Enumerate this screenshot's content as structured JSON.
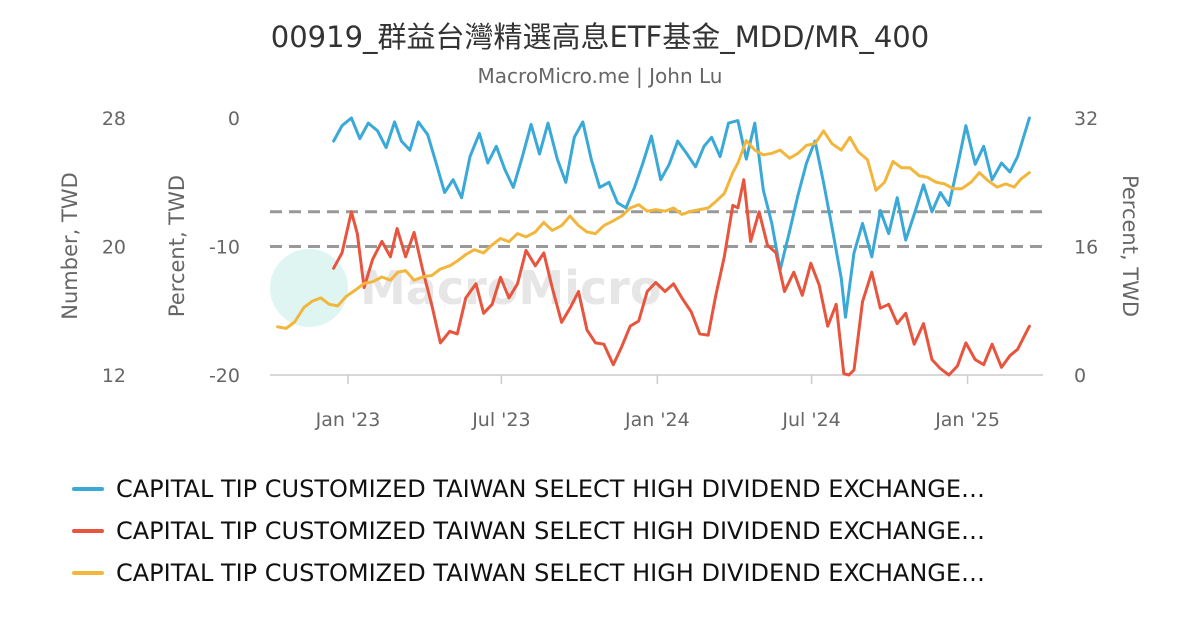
{
  "header": {
    "title": "00919_群益台灣精選高息ETF基金_MDD/MR_400",
    "subtitle": "MacroMicro.me | John Lu"
  },
  "watermark": {
    "text": "MacroMicro"
  },
  "chart_data": {
    "type": "line",
    "x_ticks": [
      "Jan '23",
      "Jul '23",
      "Jan '24",
      "Jul '24",
      "Jan '25"
    ],
    "x_range": [
      "2022-10-01",
      "2025-03-31"
    ],
    "axes": {
      "left_outer": {
        "title": "Number, TWD",
        "range": [
          12,
          28
        ],
        "ticks": [
          "28",
          "20",
          "12"
        ]
      },
      "left_inner": {
        "title": "Percent, TWD",
        "range": [
          -20,
          0
        ],
        "ticks": [
          "0",
          "-10",
          "-20"
        ]
      },
      "right": {
        "title": "Percent, TWD",
        "range": [
          0,
          32
        ],
        "ticks": [
          "32",
          "16",
          "0"
        ]
      }
    },
    "reference_lines": [
      {
        "axis": "left_inner",
        "value": -7.3,
        "style": "dashed"
      },
      {
        "axis": "left_inner",
        "value": -10,
        "style": "dashed"
      }
    ],
    "grid": false,
    "legend_position": "bottom",
    "series": [
      {
        "name": "CAPITAL TIP CUSTOMIZED TAIWAN SELECT HIGH DIVIDEND EXCHANGE…",
        "color": "#3aa9d8",
        "axis": "left_inner",
        "points": [
          [
            "2022-12-15",
            -1.8
          ],
          [
            "2022-12-25",
            -0.6
          ],
          [
            "2023-01-05",
            0
          ],
          [
            "2023-01-15",
            -1.6
          ],
          [
            "2023-01-25",
            -0.4
          ],
          [
            "2023-02-05",
            -1.0
          ],
          [
            "2023-02-15",
            -2.3
          ],
          [
            "2023-02-25",
            -0.3
          ],
          [
            "2023-03-05",
            -1.8
          ],
          [
            "2023-03-15",
            -2.5
          ],
          [
            "2023-03-25",
            -0.3
          ],
          [
            "2023-04-05",
            -1.3
          ],
          [
            "2023-04-15",
            -3.5
          ],
          [
            "2023-04-25",
            -5.8
          ],
          [
            "2023-05-05",
            -4.8
          ],
          [
            "2023-05-15",
            -6.2
          ],
          [
            "2023-05-25",
            -3.0
          ],
          [
            "2023-06-05",
            -1.2
          ],
          [
            "2023-06-15",
            -3.5
          ],
          [
            "2023-06-25",
            -2.2
          ],
          [
            "2023-07-05",
            -4.0
          ],
          [
            "2023-07-15",
            -5.4
          ],
          [
            "2023-07-25",
            -3.2
          ],
          [
            "2023-08-05",
            -0.5
          ],
          [
            "2023-08-15",
            -2.8
          ],
          [
            "2023-08-25",
            -0.4
          ],
          [
            "2023-09-05",
            -3.2
          ],
          [
            "2023-09-15",
            -5.0
          ],
          [
            "2023-09-25",
            -1.5
          ],
          [
            "2023-10-05",
            -0.3
          ],
          [
            "2023-10-15",
            -3.2
          ],
          [
            "2023-10-25",
            -5.4
          ],
          [
            "2023-11-05",
            -5.0
          ],
          [
            "2023-11-15",
            -6.6
          ],
          [
            "2023-11-25",
            -7.0
          ],
          [
            "2023-12-05",
            -5.4
          ],
          [
            "2023-12-15",
            -3.5
          ],
          [
            "2023-12-25",
            -1.4
          ],
          [
            "2024-01-05",
            -4.8
          ],
          [
            "2024-01-15",
            -3.6
          ],
          [
            "2024-01-25",
            -1.8
          ],
          [
            "2024-02-05",
            -2.8
          ],
          [
            "2024-02-15",
            -3.8
          ],
          [
            "2024-02-25",
            -2.2
          ],
          [
            "2024-03-05",
            -1.5
          ],
          [
            "2024-03-15",
            -3.0
          ],
          [
            "2024-03-25",
            -0.4
          ],
          [
            "2024-04-05",
            -0.2
          ],
          [
            "2024-04-15",
            -3.2
          ],
          [
            "2024-04-25",
            -0.4
          ],
          [
            "2024-05-05",
            -5.6
          ],
          [
            "2024-05-15",
            -8.2
          ],
          [
            "2024-05-25",
            -11.8
          ],
          [
            "2024-06-05",
            -8.8
          ],
          [
            "2024-06-15",
            -6.0
          ],
          [
            "2024-06-25",
            -3.5
          ],
          [
            "2024-07-05",
            -1.8
          ],
          [
            "2024-07-15",
            -5.0
          ],
          [
            "2024-07-25",
            -8.5
          ],
          [
            "2024-08-05",
            -12.5
          ],
          [
            "2024-08-10",
            -15.5
          ],
          [
            "2024-08-20",
            -10.5
          ],
          [
            "2024-08-30",
            -8.2
          ],
          [
            "2024-09-10",
            -10.8
          ],
          [
            "2024-09-20",
            -7.2
          ],
          [
            "2024-09-30",
            -9.0
          ],
          [
            "2024-10-10",
            -6.2
          ],
          [
            "2024-10-20",
            -9.5
          ],
          [
            "2024-10-30",
            -7.5
          ],
          [
            "2024-11-10",
            -5.2
          ],
          [
            "2024-11-20",
            -7.3
          ],
          [
            "2024-11-30",
            -5.8
          ],
          [
            "2024-12-10",
            -6.8
          ],
          [
            "2024-12-20",
            -3.8
          ],
          [
            "2024-12-30",
            -0.6
          ],
          [
            "2025-01-10",
            -3.6
          ],
          [
            "2025-01-20",
            -2.2
          ],
          [
            "2025-01-30",
            -4.8
          ],
          [
            "2025-02-10",
            -3.5
          ],
          [
            "2025-02-20",
            -4.2
          ],
          [
            "2025-03-01",
            -3.0
          ],
          [
            "2025-03-08",
            -1.5
          ],
          [
            "2025-03-15",
            0
          ]
        ]
      },
      {
        "name": "CAPITAL TIP CUSTOMIZED TAIWAN SELECT HIGH DIVIDEND EXCHANGE…",
        "color": "#e8553e",
        "axis": "left_inner",
        "points": [
          [
            "2022-12-15",
            -11.7
          ],
          [
            "2022-12-25",
            -10.5
          ],
          [
            "2023-01-05",
            -7.3
          ],
          [
            "2023-01-12",
            -9.0
          ],
          [
            "2023-01-20",
            -13.2
          ],
          [
            "2023-01-30",
            -11.0
          ],
          [
            "2023-02-10",
            -9.6
          ],
          [
            "2023-02-20",
            -10.8
          ],
          [
            "2023-02-28",
            -8.6
          ],
          [
            "2023-03-10",
            -10.8
          ],
          [
            "2023-03-20",
            -8.9
          ],
          [
            "2023-03-30",
            -11.8
          ],
          [
            "2023-04-10",
            -14.6
          ],
          [
            "2023-04-20",
            -17.5
          ],
          [
            "2023-05-01",
            -16.6
          ],
          [
            "2023-05-10",
            -16.8
          ],
          [
            "2023-05-20",
            -14.0
          ],
          [
            "2023-06-01",
            -12.9
          ],
          [
            "2023-06-10",
            -15.2
          ],
          [
            "2023-06-20",
            -14.5
          ],
          [
            "2023-06-30",
            -12.4
          ],
          [
            "2023-07-10",
            -14.0
          ],
          [
            "2023-07-20",
            -12.9
          ],
          [
            "2023-07-30",
            -10.3
          ],
          [
            "2023-08-10",
            -11.5
          ],
          [
            "2023-08-20",
            -10.5
          ],
          [
            "2023-08-30",
            -13.2
          ],
          [
            "2023-09-10",
            -15.9
          ],
          [
            "2023-09-20",
            -14.8
          ],
          [
            "2023-09-30",
            -13.5
          ],
          [
            "2023-10-10",
            -16.5
          ],
          [
            "2023-10-20",
            -17.5
          ],
          [
            "2023-10-30",
            -17.6
          ],
          [
            "2023-11-10",
            -19.2
          ],
          [
            "2023-11-20",
            -17.8
          ],
          [
            "2023-11-30",
            -16.2
          ],
          [
            "2023-12-10",
            -15.8
          ],
          [
            "2023-12-20",
            -13.5
          ],
          [
            "2023-12-30",
            -12.8
          ],
          [
            "2024-01-10",
            -13.5
          ],
          [
            "2024-01-20",
            -12.9
          ],
          [
            "2024-01-30",
            -14.0
          ],
          [
            "2024-02-10",
            -15.1
          ],
          [
            "2024-02-20",
            -16.8
          ],
          [
            "2024-03-01",
            -16.9
          ],
          [
            "2024-03-10",
            -13.8
          ],
          [
            "2024-03-20",
            -10.8
          ],
          [
            "2024-03-30",
            -6.8
          ],
          [
            "2024-04-05",
            -7.0
          ],
          [
            "2024-04-12",
            -4.8
          ],
          [
            "2024-04-20",
            -9.6
          ],
          [
            "2024-04-30",
            -7.3
          ],
          [
            "2024-05-10",
            -9.9
          ],
          [
            "2024-05-20",
            -10.5
          ],
          [
            "2024-05-30",
            -13.5
          ],
          [
            "2024-06-10",
            -12.0
          ],
          [
            "2024-06-20",
            -13.8
          ],
          [
            "2024-06-30",
            -11.3
          ],
          [
            "2024-07-10",
            -13.0
          ],
          [
            "2024-07-20",
            -16.2
          ],
          [
            "2024-07-30",
            -14.5
          ],
          [
            "2024-08-08",
            -19.9
          ],
          [
            "2024-08-14",
            -20.0
          ],
          [
            "2024-08-20",
            -19.6
          ],
          [
            "2024-08-30",
            -14.3
          ],
          [
            "2024-09-10",
            -12.0
          ],
          [
            "2024-09-20",
            -14.8
          ],
          [
            "2024-09-30",
            -14.5
          ],
          [
            "2024-10-10",
            -16.0
          ],
          [
            "2024-10-20",
            -15.2
          ],
          [
            "2024-10-30",
            -17.6
          ],
          [
            "2024-11-10",
            -16.0
          ],
          [
            "2024-11-20",
            -18.8
          ],
          [
            "2024-11-30",
            -19.5
          ],
          [
            "2024-12-10",
            -20.0
          ],
          [
            "2024-12-20",
            -19.3
          ],
          [
            "2024-12-30",
            -17.5
          ],
          [
            "2025-01-10",
            -18.8
          ],
          [
            "2025-01-20",
            -19.2
          ],
          [
            "2025-01-30",
            -17.6
          ],
          [
            "2025-02-10",
            -19.4
          ],
          [
            "2025-02-20",
            -18.5
          ],
          [
            "2025-03-01",
            -18.0
          ],
          [
            "2025-03-08",
            -17.1
          ],
          [
            "2025-03-15",
            -16.2
          ]
        ]
      },
      {
        "name": "CAPITAL TIP CUSTOMIZED TAIWAN SELECT HIGH DIVIDEND EXCHANGE…",
        "color": "#f2b63d",
        "axis": "left_outer",
        "points": [
          [
            "2022-10-10",
            15.0
          ],
          [
            "2022-10-20",
            14.9
          ],
          [
            "2022-10-30",
            15.3
          ],
          [
            "2022-11-10",
            16.2
          ],
          [
            "2022-11-20",
            16.6
          ],
          [
            "2022-11-30",
            16.8
          ],
          [
            "2022-12-10",
            16.4
          ],
          [
            "2022-12-20",
            16.3
          ],
          [
            "2022-12-30",
            16.9
          ],
          [
            "2023-01-10",
            17.3
          ],
          [
            "2023-01-20",
            17.7
          ],
          [
            "2023-01-30",
            17.8
          ],
          [
            "2023-02-10",
            18.1
          ],
          [
            "2023-02-20",
            17.9
          ],
          [
            "2023-03-01",
            18.4
          ],
          [
            "2023-03-10",
            18.5
          ],
          [
            "2023-03-20",
            17.9
          ],
          [
            "2023-03-30",
            18.1
          ],
          [
            "2023-04-10",
            18.2
          ],
          [
            "2023-04-20",
            18.6
          ],
          [
            "2023-05-01",
            18.8
          ],
          [
            "2023-05-10",
            19.1
          ],
          [
            "2023-05-20",
            19.5
          ],
          [
            "2023-05-30",
            19.8
          ],
          [
            "2023-06-10",
            19.6
          ],
          [
            "2023-06-20",
            20.1
          ],
          [
            "2023-06-30",
            20.5
          ],
          [
            "2023-07-10",
            20.3
          ],
          [
            "2023-07-20",
            20.8
          ],
          [
            "2023-07-30",
            20.6
          ],
          [
            "2023-08-10",
            20.9
          ],
          [
            "2023-08-20",
            21.5
          ],
          [
            "2023-08-30",
            21.0
          ],
          [
            "2023-09-10",
            21.3
          ],
          [
            "2023-09-20",
            21.9
          ],
          [
            "2023-09-30",
            21.3
          ],
          [
            "2023-10-10",
            20.9
          ],
          [
            "2023-10-20",
            20.8
          ],
          [
            "2023-10-30",
            21.3
          ],
          [
            "2023-11-10",
            21.6
          ],
          [
            "2023-11-20",
            21.9
          ],
          [
            "2023-11-30",
            22.4
          ],
          [
            "2023-12-10",
            22.6
          ],
          [
            "2023-12-20",
            22.2
          ],
          [
            "2023-12-30",
            22.3
          ],
          [
            "2024-01-10",
            22.2
          ],
          [
            "2024-01-20",
            22.4
          ],
          [
            "2024-01-30",
            22.0
          ],
          [
            "2024-02-10",
            22.2
          ],
          [
            "2024-02-20",
            22.3
          ],
          [
            "2024-03-01",
            22.4
          ],
          [
            "2024-03-10",
            22.8
          ],
          [
            "2024-03-20",
            23.3
          ],
          [
            "2024-03-30",
            24.6
          ],
          [
            "2024-04-05",
            25.2
          ],
          [
            "2024-04-15",
            26.6
          ],
          [
            "2024-04-25",
            26.0
          ],
          [
            "2024-05-05",
            25.7
          ],
          [
            "2024-05-15",
            25.8
          ],
          [
            "2024-05-25",
            26.0
          ],
          [
            "2024-06-05",
            25.5
          ],
          [
            "2024-06-15",
            25.8
          ],
          [
            "2024-06-25",
            26.3
          ],
          [
            "2024-07-05",
            26.4
          ],
          [
            "2024-07-15",
            27.2
          ],
          [
            "2024-07-25",
            26.4
          ],
          [
            "2024-08-05",
            26.0
          ],
          [
            "2024-08-15",
            26.8
          ],
          [
            "2024-08-25",
            25.9
          ],
          [
            "2024-09-05",
            25.4
          ],
          [
            "2024-09-15",
            23.5
          ],
          [
            "2024-09-25",
            24.0
          ],
          [
            "2024-10-05",
            25.3
          ],
          [
            "2024-10-15",
            24.9
          ],
          [
            "2024-10-25",
            24.9
          ],
          [
            "2024-11-05",
            24.4
          ],
          [
            "2024-11-15",
            24.3
          ],
          [
            "2024-11-25",
            24.0
          ],
          [
            "2024-12-05",
            23.9
          ],
          [
            "2024-12-15",
            23.6
          ],
          [
            "2024-12-25",
            23.6
          ],
          [
            "2025-01-05",
            24.0
          ],
          [
            "2025-01-15",
            24.6
          ],
          [
            "2025-01-25",
            24.1
          ],
          [
            "2025-02-05",
            23.7
          ],
          [
            "2025-02-15",
            23.9
          ],
          [
            "2025-02-25",
            23.7
          ],
          [
            "2025-03-05",
            24.2
          ],
          [
            "2025-03-15",
            24.6
          ]
        ]
      }
    ]
  }
}
